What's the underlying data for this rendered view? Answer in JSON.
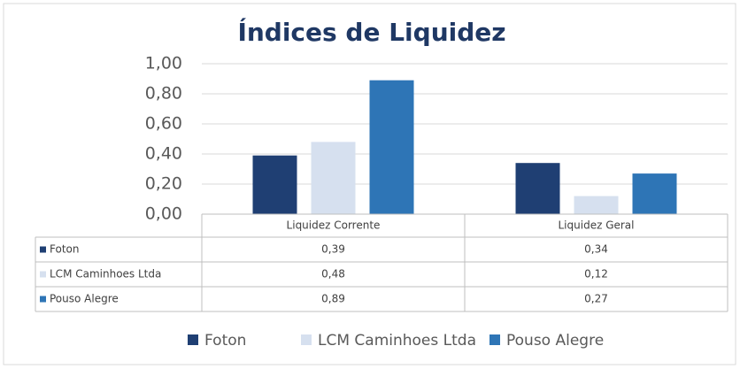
{
  "chart_data": {
    "type": "bar",
    "title": "Índices de Liquidez",
    "categories": [
      "Liquidez Corrente",
      "Liquidez Geral"
    ],
    "series": [
      {
        "name": "Foton",
        "color": "#1f3f73",
        "values": [
          0.39,
          0.34
        ],
        "value_labels": [
          "0,39",
          "0,34"
        ]
      },
      {
        "name": "LCM Caminhoes Ltda",
        "color": "#d6e0ef",
        "values": [
          0.48,
          0.12
        ],
        "value_labels": [
          "0,48",
          "0,12"
        ]
      },
      {
        "name": "Pouso Alegre",
        "color": "#2e75b6",
        "values": [
          0.89,
          0.27
        ],
        "value_labels": [
          "0,89",
          "0,27"
        ]
      }
    ],
    "ylim": [
      0,
      1
    ],
    "yticks": [
      {
        "value": 0,
        "label": "0,00"
      },
      {
        "value": 0.2,
        "label": "0,20"
      },
      {
        "value": 0.4,
        "label": "0,40"
      },
      {
        "value": 0.6,
        "label": "0,60"
      },
      {
        "value": 0.8,
        "label": "0,80"
      },
      {
        "value": 1,
        "label": "1,00"
      }
    ],
    "grid": true
  }
}
